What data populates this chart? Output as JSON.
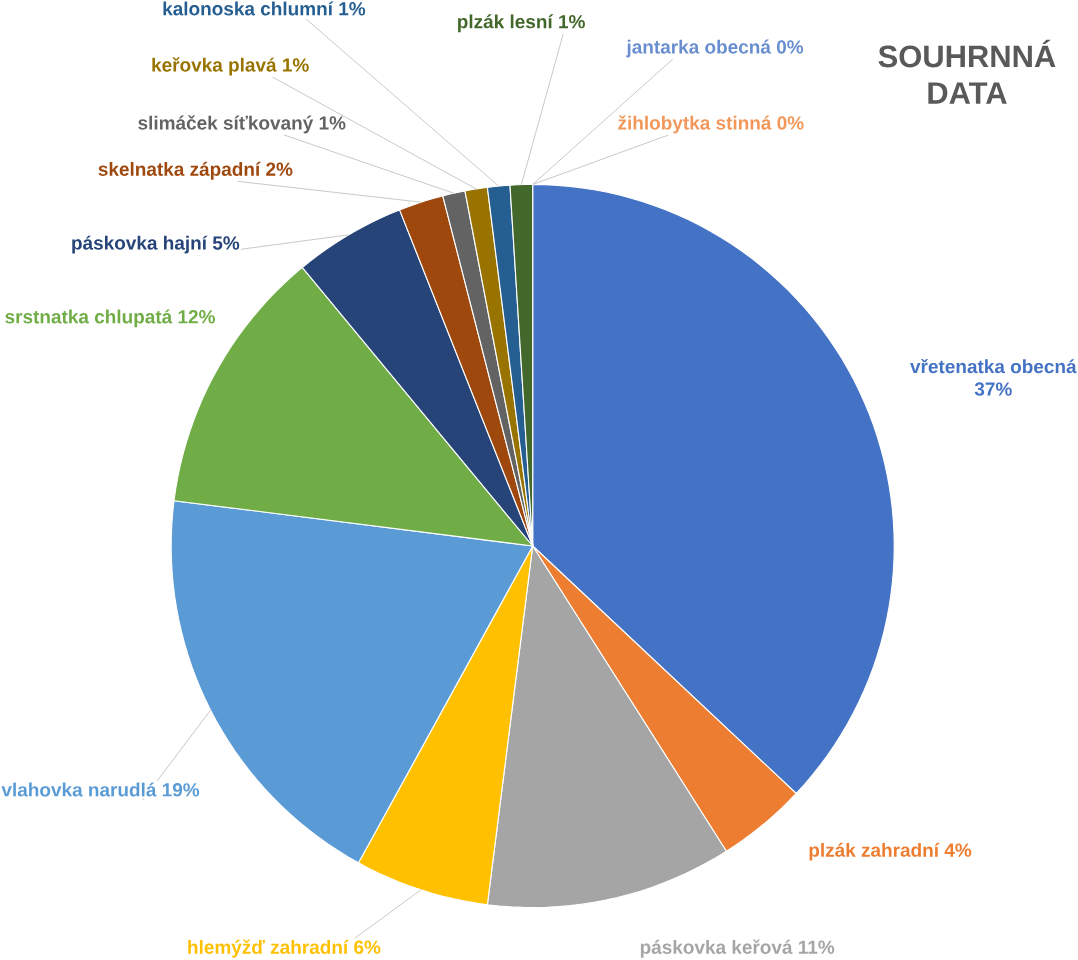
{
  "chart_data": {
    "type": "pie",
    "title": "SOUHRNNÁ DATA",
    "categories": [
      "vřetenatka obecná",
      "plzák zahradní",
      "páskovka keřová",
      "hlemýžď zahradní",
      "vlahovka narudlá",
      "srstnatka chlupatá",
      "páskovka hajní",
      "skelnatka západní",
      "slimáček síťkovaný",
      "keřovka plavá",
      "kalonoska chlumní",
      "plzák lesní",
      "jantarka obecná",
      "žihlobytka stinná"
    ],
    "values": [
      37,
      4,
      11,
      6,
      19,
      12,
      5,
      2,
      1,
      1,
      1,
      1,
      0,
      0
    ],
    "value_labels": [
      "37%",
      "4%",
      "11%",
      "6%",
      "19%",
      "12%",
      "5%",
      "2%",
      "1%",
      "1%",
      "1%",
      "1%",
      "0%",
      "0%"
    ],
    "colors": [
      "#4472c4",
      "#ed7d31",
      "#a5a5a5",
      "#ffc000",
      "#5b9bd5",
      "#70ad47",
      "#264478",
      "#9e480e",
      "#636363",
      "#997300",
      "#255e91",
      "#43682b",
      "#698ed0",
      "#f1975a"
    ]
  }
}
